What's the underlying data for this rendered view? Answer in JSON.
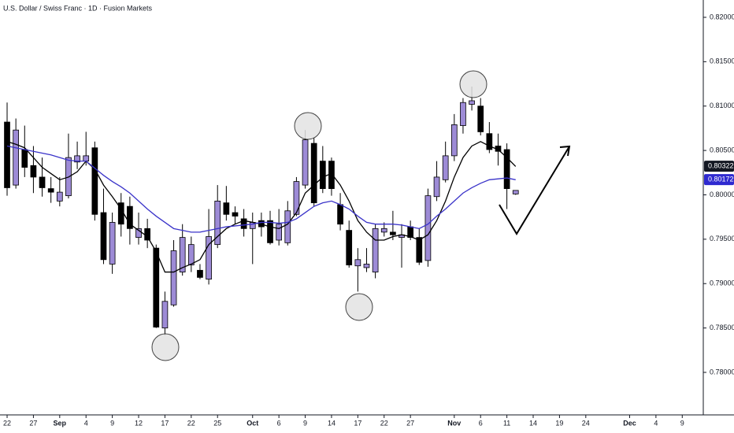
{
  "chart_data": {
    "type": "candlestick",
    "title": "U.S. Dollar / Swiss Franc · 1D · Fusion Markets",
    "x": [
      0,
      1,
      2,
      3,
      4,
      5,
      6,
      7,
      8,
      9,
      10,
      11,
      12,
      13,
      14,
      15,
      16,
      17,
      18,
      19,
      20,
      21,
      22,
      23,
      24,
      25,
      26,
      27,
      28,
      29,
      30,
      31,
      32,
      33,
      34,
      35,
      36,
      37,
      38,
      39,
      40,
      41,
      42,
      43,
      44,
      45,
      46,
      47,
      48,
      49,
      50,
      51,
      52,
      53,
      54,
      55,
      56,
      57,
      58
    ],
    "open": [
      0.8082,
      0.8011,
      0.8051,
      0.8033,
      0.802,
      0.8007,
      0.7993,
      0.7999,
      0.8037,
      0.8038,
      0.8053,
      0.798,
      0.7922,
      0.7991,
      0.7987,
      0.7952,
      0.7962,
      0.794,
      0.785,
      0.7876,
      0.7913,
      0.7921,
      0.7915,
      0.7905,
      0.7944,
      0.7991,
      0.798,
      0.7973,
      0.7962,
      0.7971,
      0.7971,
      0.7949,
      0.7946,
      0.7978,
      0.8011,
      0.8058,
      0.8038,
      0.8038,
      0.7989,
      0.796,
      0.792,
      0.7918,
      0.7913,
      0.7958,
      0.7958,
      0.7952,
      0.7964,
      0.7952,
      0.7926,
      0.7998,
      0.8017,
      0.8044,
      0.8078,
      0.8102,
      0.81,
      0.8069,
      0.8055,
      0.8051,
      0.8001
    ],
    "high": [
      0.8104,
      0.8086,
      0.8078,
      0.8055,
      0.8042,
      0.802,
      0.802,
      0.8069,
      0.806,
      0.8071,
      0.806,
      0.8007,
      0.798,
      0.8002,
      0.7998,
      0.798,
      0.7973,
      0.7944,
      0.7891,
      0.7949,
      0.7967,
      0.7953,
      0.7922,
      0.7984,
      0.8011,
      0.801,
      0.7987,
      0.7984,
      0.798,
      0.798,
      0.7982,
      0.7984,
      0.7993,
      0.802,
      0.8073,
      0.8064,
      0.8055,
      0.8042,
      0.8002,
      0.7971,
      0.794,
      0.794,
      0.7967,
      0.7969,
      0.7982,
      0.7967,
      0.7971,
      0.7962,
      0.8007,
      0.8038,
      0.806,
      0.8091,
      0.8109,
      0.8122,
      0.8109,
      0.8082,
      0.8069,
      0.8058,
      0.8005
    ],
    "low": [
      0.7999,
      0.8007,
      0.802,
      0.8002,
      0.7998,
      0.7991,
      0.7987,
      0.7996,
      0.8029,
      0.8033,
      0.7971,
      0.7922,
      0.7911,
      0.7953,
      0.7944,
      0.7944,
      0.794,
      0.785,
      0.7842,
      0.7874,
      0.7909,
      0.7913,
      0.7905,
      0.7899,
      0.794,
      0.7971,
      0.7967,
      0.7953,
      0.7922,
      0.7953,
      0.7944,
      0.7943,
      0.7943,
      0.7976,
      0.8007,
      0.7987,
      0.8002,
      0.7999,
      0.796,
      0.7918,
      0.7891,
      0.7913,
      0.7906,
      0.7953,
      0.7949,
      0.7918,
      0.7949,
      0.7921,
      0.7919,
      0.7993,
      0.8014,
      0.8038,
      0.8069,
      0.8095,
      0.8067,
      0.8047,
      0.8033,
      0.7984,
      0.8
    ],
    "close": [
      0.8008,
      0.8073,
      0.8031,
      0.802,
      0.8008,
      0.8003,
      0.8003,
      0.8042,
      0.8044,
      0.8044,
      0.7978,
      0.7927,
      0.7969,
      0.7967,
      0.7962,
      0.7962,
      0.7949,
      0.7851,
      0.788,
      0.7937,
      0.7952,
      0.7944,
      0.7907,
      0.7953,
      0.7993,
      0.7978,
      0.7976,
      0.7962,
      0.7969,
      0.7964,
      0.7946,
      0.7967,
      0.7982,
      0.8015,
      0.8062,
      0.7991,
      0.8007,
      0.8007,
      0.7967,
      0.7921,
      0.7927,
      0.7922,
      0.7962,
      0.7962,
      0.7955,
      0.7955,
      0.7952,
      0.7924,
      0.7999,
      0.802,
      0.8044,
      0.8079,
      0.8104,
      0.8106,
      0.8071,
      0.8051,
      0.8049,
      0.8007,
      0.8005
    ],
    "up_color": "#9d8bd6",
    "down_color": "#000000",
    "lines": [
      {
        "color": "#000000",
        "values": [
          0.806,
          0.8057,
          0.8053,
          0.8042,
          0.8031,
          0.8024,
          0.8017,
          0.802,
          0.8026,
          0.8038,
          0.8029,
          0.8011,
          0.7998,
          0.7984,
          0.7967,
          0.796,
          0.7953,
          0.7936,
          0.7913,
          0.7913,
          0.7918,
          0.7922,
          0.7927,
          0.7944,
          0.7953,
          0.7962,
          0.7967,
          0.7971,
          0.7969,
          0.7967,
          0.7964,
          0.7962,
          0.7967,
          0.798,
          0.8002,
          0.8011,
          0.802,
          0.8024,
          0.8011,
          0.7993,
          0.7971,
          0.7958,
          0.7949,
          0.7949,
          0.7953,
          0.7955,
          0.7953,
          0.7949,
          0.7955,
          0.7971,
          0.7993,
          0.802,
          0.8042,
          0.8055,
          0.806,
          0.8055,
          0.8051,
          0.8042,
          0.8032
        ]
      },
      {
        "color": "#3a33c9",
        "values": [
          0.8055,
          0.8053,
          0.8051,
          0.8049,
          0.8047,
          0.8045,
          0.8042,
          0.8039,
          0.8038,
          0.8038,
          0.803,
          0.8022,
          0.8015,
          0.8009,
          0.8002,
          0.7993,
          0.7984,
          0.7976,
          0.7969,
          0.7962,
          0.796,
          0.7958,
          0.7958,
          0.796,
          0.7962,
          0.7964,
          0.7965,
          0.7966,
          0.7967,
          0.7969,
          0.7969,
          0.7968,
          0.7969,
          0.7973,
          0.798,
          0.7987,
          0.7991,
          0.7993,
          0.7989,
          0.7984,
          0.7976,
          0.7969,
          0.7967,
          0.7967,
          0.7967,
          0.7966,
          0.7964,
          0.7962,
          0.7967,
          0.7976,
          0.7984,
          0.7993,
          0.8002,
          0.8008,
          0.8013,
          0.8017,
          0.8018,
          0.8019,
          0.8017
        ]
      }
    ],
    "price_tags": [
      {
        "value": 0.80322,
        "color": "#131722"
      },
      {
        "value": 0.80172,
        "color": "#2f2ad0"
      }
    ],
    "xlim": [
      -0.81,
      79.4
    ],
    "xticks": [
      {
        "value": 0,
        "label": "22"
      },
      {
        "value": 3,
        "label": "27"
      },
      {
        "value": 6,
        "label": "Sep"
      },
      {
        "value": 9,
        "label": "4"
      },
      {
        "value": 12,
        "label": "9"
      },
      {
        "value": 15,
        "label": "12"
      },
      {
        "value": 18,
        "label": "17"
      },
      {
        "value": 21,
        "label": "22"
      },
      {
        "value": 24,
        "label": "25"
      },
      {
        "value": 28,
        "label": "Oct"
      },
      {
        "value": 31,
        "label": "6"
      },
      {
        "value": 34,
        "label": "9"
      },
      {
        "value": 37,
        "label": "14"
      },
      {
        "value": 40,
        "label": "17"
      },
      {
        "value": 43,
        "label": "22"
      },
      {
        "value": 46,
        "label": "27"
      },
      {
        "value": 51,
        "label": "Nov"
      },
      {
        "value": 54,
        "label": "6"
      },
      {
        "value": 57,
        "label": "11"
      },
      {
        "value": 60,
        "label": "14"
      },
      {
        "value": 63,
        "label": "19"
      },
      {
        "value": 66,
        "label": "24"
      },
      {
        "value": 71,
        "label": "Dec"
      },
      {
        "value": 74,
        "label": "4"
      },
      {
        "value": 77,
        "label": "9"
      }
    ],
    "ylim": [
      0.77521,
      0.82195
    ],
    "yticks": [
      {
        "value": 0.78,
        "label": "0.78000"
      },
      {
        "value": 0.785,
        "label": "0.78500"
      },
      {
        "value": 0.79,
        "label": "0.79000"
      },
      {
        "value": 0.795,
        "label": "0.79500"
      },
      {
        "value": 0.8,
        "label": "0.80000"
      },
      {
        "value": 0.805,
        "label": "0.80500"
      },
      {
        "value": 0.81,
        "label": "0.81000"
      },
      {
        "value": 0.815,
        "label": "0.81500"
      },
      {
        "value": 0.82,
        "label": "0.82000"
      }
    ]
  }
}
